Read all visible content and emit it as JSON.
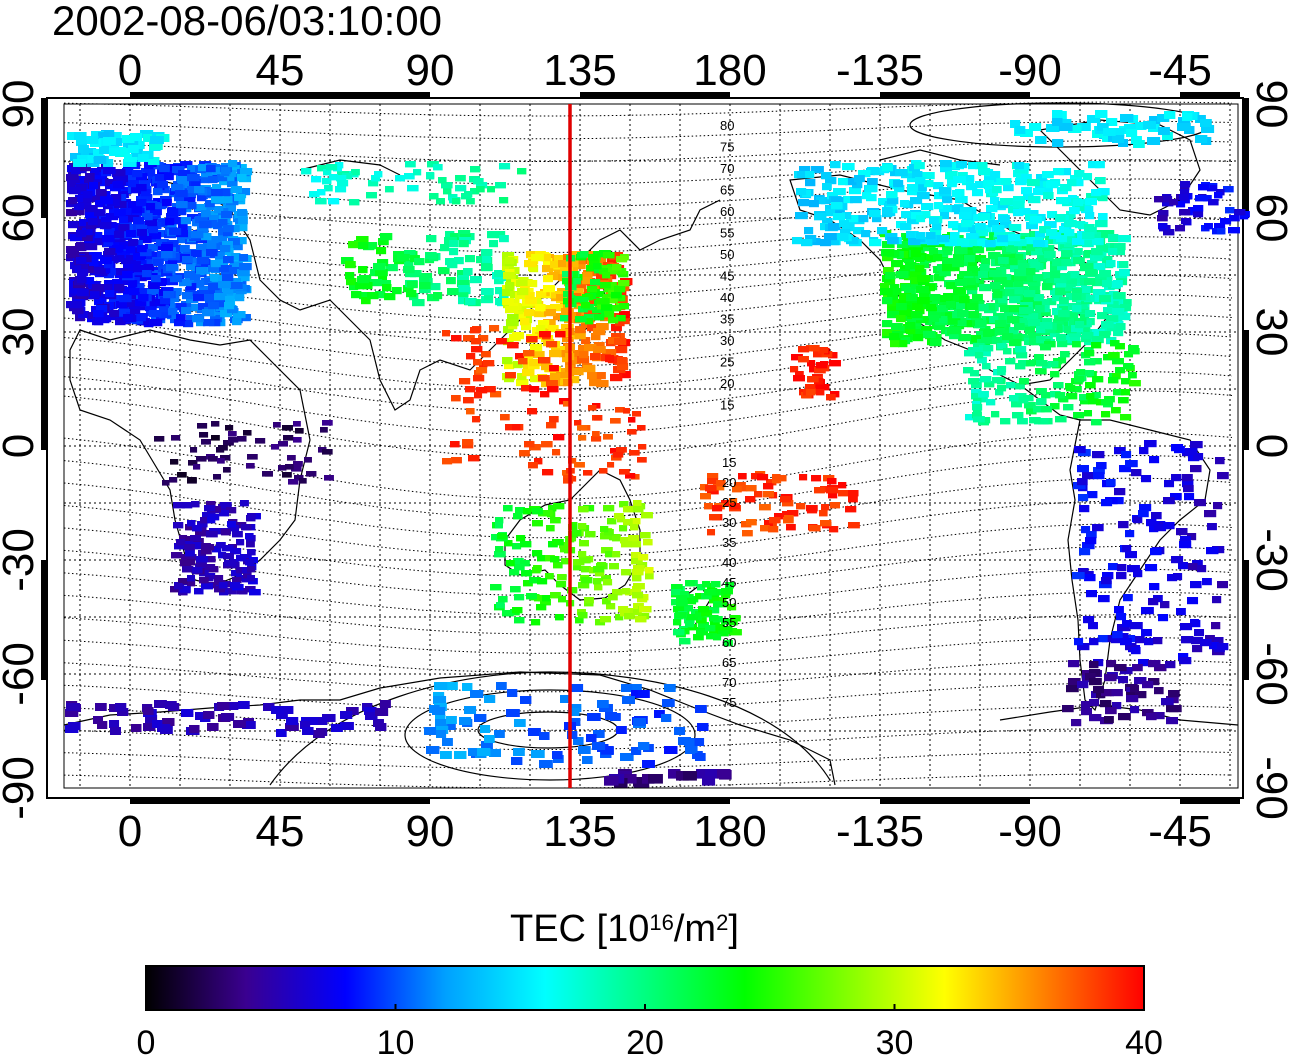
{
  "title": "2002-08-06/03:10:00",
  "colorbar": {
    "label_prefix": "TEC  [10",
    "label_exp1": "16",
    "label_mid": "/m",
    "label_exp2": "2",
    "label_suffix": "]",
    "min": 0,
    "max": 40,
    "ticks": [
      "0",
      "10",
      "20",
      "30",
      "40"
    ],
    "colors": [
      "#000000",
      "#3a0090",
      "#0000ff",
      "#00a0ff",
      "#00ffff",
      "#00ff80",
      "#00ff00",
      "#80ff00",
      "#ffff00",
      "#ff8000",
      "#ff0000"
    ]
  },
  "axes": {
    "top_lon_labels": [
      "0",
      "45",
      "90",
      "135",
      "180",
      "-135",
      "-90",
      "-45"
    ],
    "bottom_lon_labels": [
      "0",
      "45",
      "90",
      "135",
      "180",
      "-135",
      "-90",
      "-45"
    ],
    "left_lat_labels": [
      "90",
      "60",
      "30",
      "0",
      "-30",
      "-60",
      "-90"
    ],
    "right_lat_labels": [
      "90",
      "60",
      "30",
      "0",
      "-30",
      "-60",
      "-90"
    ]
  },
  "meridian_line": {
    "lon": 132,
    "color": "#e00000"
  },
  "contour_labels_north": [
    "80",
    "75",
    "70",
    "65",
    "60",
    "55",
    "50",
    "45",
    "40",
    "35",
    "30",
    "25",
    "20",
    "15"
  ],
  "contour_labels_south": [
    "15",
    "20",
    "25",
    "30",
    "35",
    "40",
    "45",
    "50",
    "55",
    "60",
    "65",
    "70",
    "75"
  ],
  "tec_regions": [
    {
      "name": "europe",
      "value": 8
    },
    {
      "name": "east-asia",
      "value": 37
    },
    {
      "name": "north-america",
      "value": 22
    },
    {
      "name": "australia",
      "value": 25
    },
    {
      "name": "south-america",
      "value": 8
    },
    {
      "name": "africa",
      "value": 5
    },
    {
      "name": "antarctica",
      "value": 10
    }
  ]
}
